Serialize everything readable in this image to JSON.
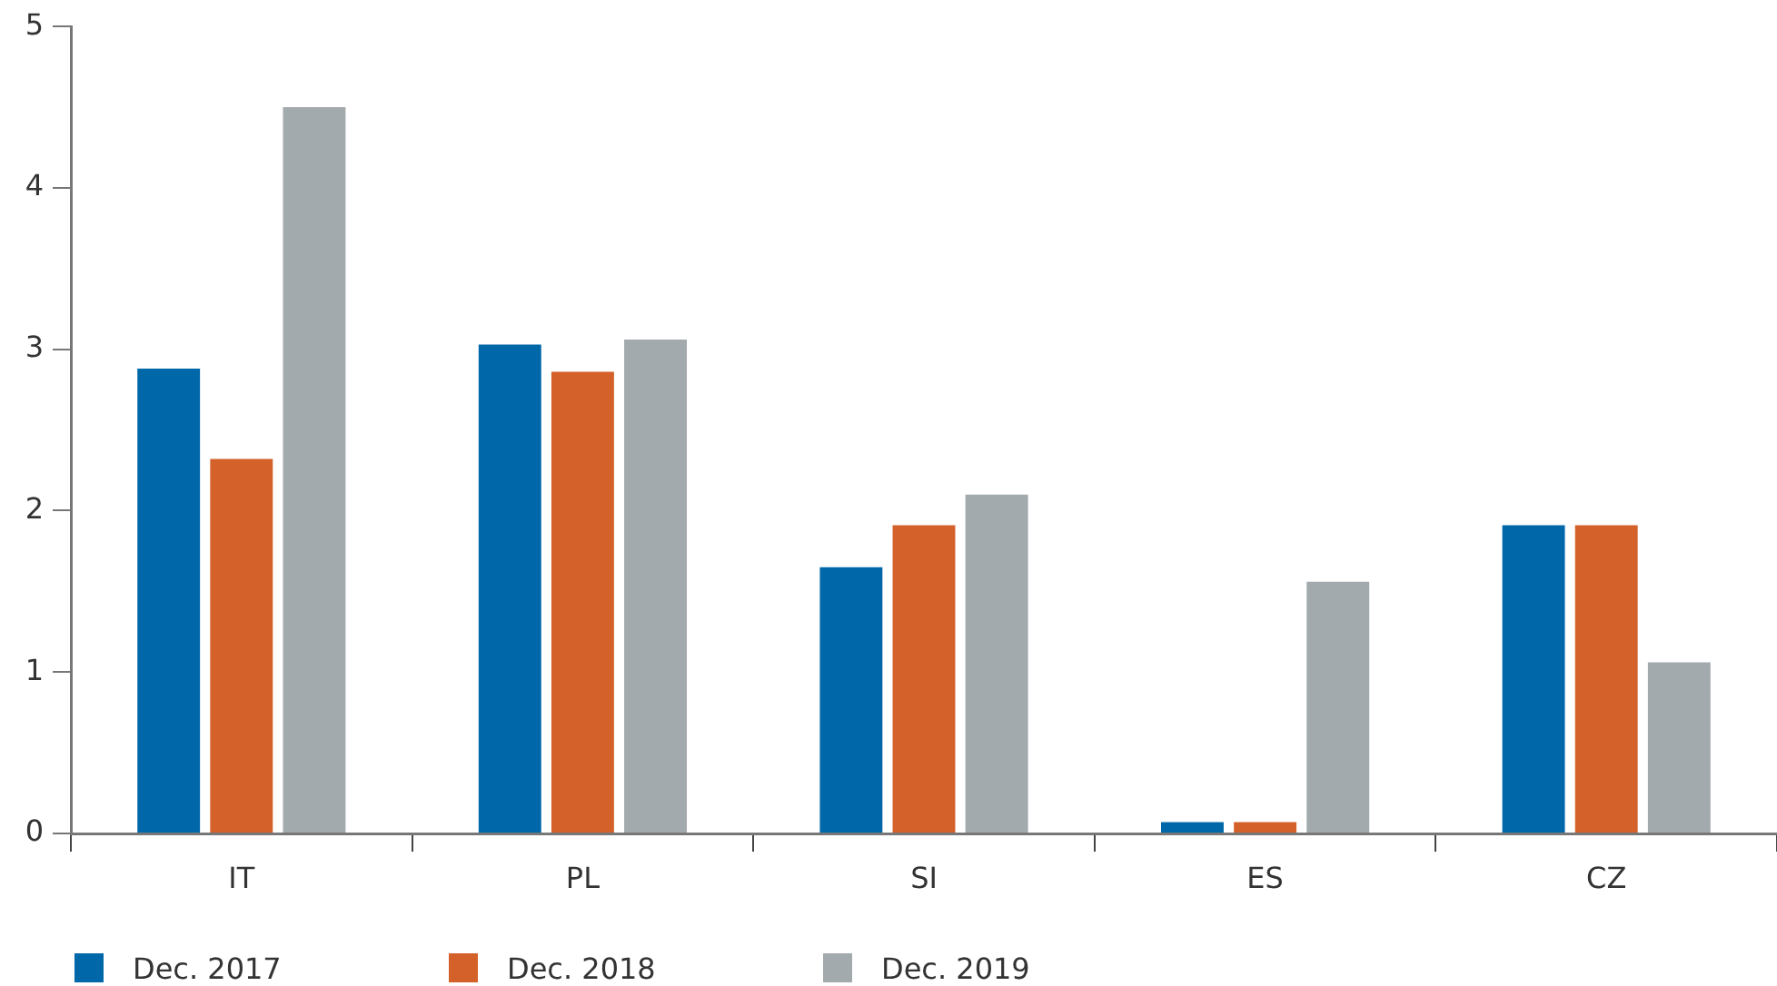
{
  "chart_data": {
    "type": "bar",
    "categories": [
      "IT",
      "PL",
      "SI",
      "ES",
      "CZ"
    ],
    "series": [
      {
        "name": "Dec. 2017",
        "color": "#0067a9",
        "values": [
          2.88,
          3.03,
          1.65,
          0.07,
          1.91
        ]
      },
      {
        "name": "Dec. 2018",
        "color": "#d4602a",
        "values": [
          2.32,
          2.86,
          1.91,
          0.07,
          1.91
        ]
      },
      {
        "name": "Dec. 2019",
        "color": "#a3aaad",
        "values": [
          4.5,
          3.06,
          2.1,
          1.56,
          1.06
        ]
      }
    ],
    "ylim": [
      0,
      5
    ],
    "yticks": [
      0,
      1,
      2,
      3,
      4,
      5
    ],
    "legend": "bottom"
  }
}
